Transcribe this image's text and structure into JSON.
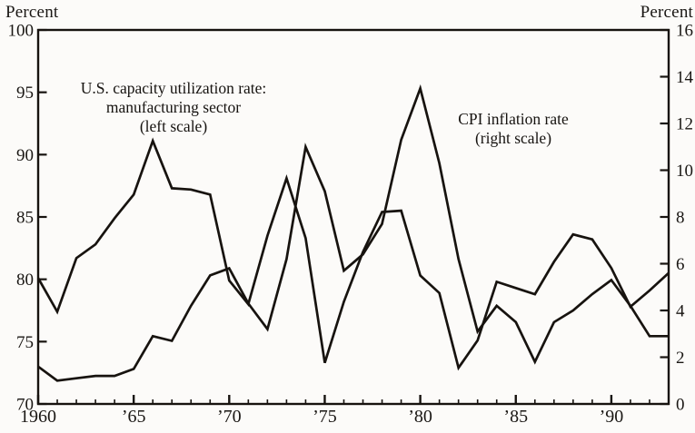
{
  "chart": {
    "left_axis_title": "Percent",
    "right_axis_title": "Percent"
  },
  "annotations": {
    "capacity_label": [
      "U.S. capacity utilization rate:",
      "manufacturing sector",
      "(left scale)"
    ],
    "cpi_label": [
      "CPI inflation rate",
      "(right scale)"
    ]
  },
  "chart_data": {
    "type": "line",
    "title": "",
    "grid": false,
    "legend": "inline annotations",
    "line_color": "#17130f",
    "x": [
      1960,
      1961,
      1962,
      1963,
      1964,
      1965,
      1966,
      1967,
      1968,
      1969,
      1970,
      1971,
      1972,
      1973,
      1974,
      1975,
      1976,
      1977,
      1978,
      1979,
      1980,
      1981,
      1982,
      1983,
      1984,
      1985,
      1986,
      1987,
      1988,
      1989,
      1990,
      1991,
      1992,
      1993
    ],
    "series": [
      {
        "id": "capacity-utilization-line",
        "name": "U.S. capacity utilization rate: manufacturing sector",
        "axis": "left",
        "values": [
          80.1,
          77.4,
          81.7,
          82.8,
          84.9,
          86.8,
          91.1,
          87.3,
          87.2,
          86.8,
          79.9,
          78.0,
          83.5,
          88.1,
          83.3,
          73.3,
          78.2,
          82.2,
          85.4,
          85.5,
          80.3,
          78.9,
          72.9,
          75.1,
          79.8,
          79.3,
          78.8,
          81.4,
          83.6,
          83.2,
          80.9,
          77.8,
          79.1,
          80.5
        ]
      },
      {
        "id": "cpi-inflation-line",
        "name": "CPI inflation rate",
        "axis": "right",
        "values": [
          1.6,
          1.0,
          1.1,
          1.2,
          1.2,
          1.5,
          2.9,
          2.7,
          4.2,
          5.5,
          5.8,
          4.3,
          3.2,
          6.2,
          11.0,
          9.1,
          5.7,
          6.4,
          7.7,
          11.3,
          13.5,
          10.3,
          6.2,
          3.1,
          4.2,
          3.5,
          1.8,
          3.5,
          4.0,
          4.7,
          5.3,
          4.2,
          2.9,
          2.9
        ]
      }
    ],
    "left_axis": {
      "label": "Percent",
      "min": 70,
      "max": 100,
      "ticks": [
        70,
        75,
        80,
        85,
        90,
        95,
        100
      ]
    },
    "right_axis": {
      "label": "Percent",
      "min": 0,
      "max": 16,
      "ticks": [
        0,
        2,
        4,
        6,
        8,
        10,
        12,
        14,
        16
      ]
    },
    "x_axis": {
      "min": 1960,
      "max": 1993,
      "labeled_ticks": [
        1960,
        1965,
        1970,
        1975,
        1980,
        1985,
        1990
      ],
      "tick_labels": [
        "1960",
        "’65",
        "’70",
        "’75",
        "’80",
        "’85",
        "’90"
      ],
      "minor_tick_every": 1
    }
  }
}
